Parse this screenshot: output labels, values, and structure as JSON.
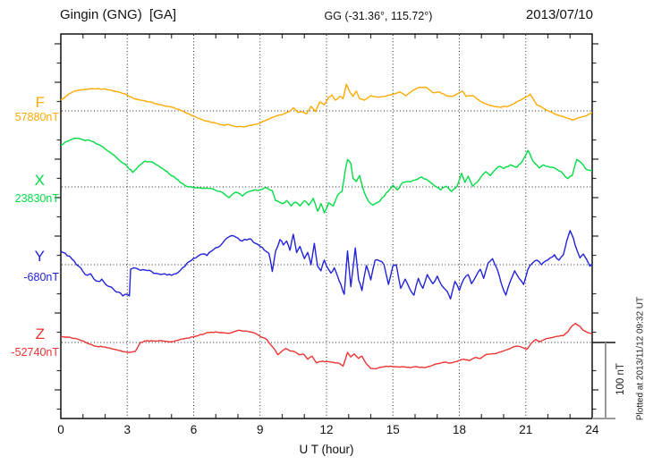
{
  "header": {
    "station": "Gingin (GNG)  [GA]",
    "coords": "GG (-31.36°, 115.72°)",
    "date": "2013/07/10"
  },
  "side": {
    "plotted_note": "Plotted at 2013/11/12 09:32 UT",
    "scale_label": "100 nT"
  },
  "chart_data": {
    "type": "line",
    "title": "Gingin (GNG) [GA] magnetogram 2013/07/10",
    "xlabel": "U T (hour)",
    "x_range": [
      0,
      24
    ],
    "x_ticks": [
      0,
      3,
      6,
      9,
      12,
      15,
      18,
      21,
      24
    ],
    "x_minor_tick_hours": 1,
    "grid": "dotted vertical lines every 3 hours; dotted horizontal line at each series baseline",
    "legend_position": "left margin, one colored label per stacked trace",
    "scale_bar_nT": 100,
    "y_unit": "nT",
    "series": [
      {
        "name": "F",
        "base_label": "57880nT",
        "base_nT": 57880,
        "color": "#FFAA00",
        "x": [
          0,
          0.3,
          0.6,
          1.0,
          1.3,
          1.6,
          2.0,
          2.3,
          2.6,
          3.0,
          3.3,
          3.6,
          4.0,
          4.5,
          5.0,
          5.5,
          6.0,
          6.5,
          7.0,
          7.4,
          7.6,
          7.8,
          8.2,
          8.6,
          9.0,
          9.4,
          9.7,
          10.0,
          10.3,
          10.5,
          10.7,
          10.9,
          11.1,
          11.3,
          11.5,
          11.7,
          11.9,
          12.1,
          12.25,
          12.4,
          12.6,
          12.75,
          12.9,
          13.05,
          13.2,
          13.35,
          13.5,
          13.7,
          14.0,
          14.3,
          14.6,
          15.0,
          15.3,
          15.6,
          15.9,
          16.2,
          16.5,
          16.8,
          17.1,
          17.4,
          17.7,
          18.0,
          18.15,
          18.3,
          18.6,
          19.0,
          19.4,
          19.8,
          20.2,
          20.6,
          21.0,
          21.2,
          21.5,
          22.0,
          22.4,
          22.8,
          23.1,
          23.4,
          23.7,
          24
        ],
        "dnT": [
          14,
          21,
          26,
          28,
          29,
          29,
          29,
          27,
          25,
          21,
          16,
          14,
          12,
          8,
          5,
          0,
          -7,
          -13,
          -16,
          -19,
          -18,
          -20,
          -21,
          -19,
          -16,
          -11,
          -7,
          -5,
          -1,
          4,
          -2,
          -1,
          -4,
          6,
          -1,
          12,
          8,
          18,
          21,
          14,
          19,
          16,
          35,
          25,
          19,
          26,
          16,
          14,
          20,
          18,
          19,
          22,
          25,
          20,
          27,
          31,
          31,
          24,
          25,
          20,
          19,
          24,
          26,
          19,
          20,
          12,
          7,
          5,
          6,
          12,
          18,
          22,
          8,
          0,
          -5,
          -9,
          -12,
          -9,
          -7,
          -2
        ]
      },
      {
        "name": "X",
        "base_label": "23830nT",
        "base_nT": 23830,
        "color": "#00DD44",
        "x": [
          0,
          0.3,
          0.7,
          1.0,
          1.4,
          1.8,
          2.2,
          2.6,
          3.0,
          3.25,
          3.5,
          3.8,
          4.1,
          4.4,
          4.8,
          5.2,
          5.6,
          6.0,
          6.4,
          6.8,
          7.2,
          7.6,
          7.9,
          8.2,
          8.5,
          9.0,
          9.3,
          9.55,
          9.7,
          10.0,
          10.2,
          10.4,
          10.6,
          10.8,
          11.0,
          11.2,
          11.4,
          11.6,
          11.75,
          11.9,
          12.1,
          12.3,
          12.5,
          12.7,
          12.85,
          12.95,
          13.1,
          13.2,
          13.35,
          13.5,
          13.7,
          13.9,
          14.1,
          14.4,
          14.7,
          15.0,
          15.2,
          15.45,
          15.7,
          16.0,
          16.3,
          16.6,
          16.9,
          17.15,
          17.4,
          17.65,
          17.9,
          18.1,
          18.25,
          18.4,
          18.6,
          18.8,
          19.0,
          19.2,
          19.4,
          19.6,
          19.8,
          20.0,
          20.3,
          20.6,
          20.85,
          21.1,
          21.35,
          21.6,
          21.8,
          22.0,
          22.3,
          22.6,
          22.9,
          23.1,
          23.3,
          23.5,
          23.7,
          24
        ],
        "dnT": [
          55,
          60,
          64,
          62,
          60,
          54,
          46,
          36,
          27,
          19,
          27,
          34,
          33,
          28,
          20,
          11,
          2,
          -1,
          -2,
          -2,
          -6,
          -14,
          -7,
          -12,
          -6,
          -4,
          -1,
          -5,
          -18,
          -22,
          -18,
          -25,
          -20,
          -25,
          -18,
          -24,
          -15,
          -32,
          -22,
          -34,
          -21,
          -25,
          -11,
          -6,
          22,
          36,
          31,
          11,
          7,
          15,
          -7,
          -19,
          -24,
          -19,
          -8,
          2,
          -4,
          6,
          7,
          9,
          13,
          8,
          1,
          -4,
          1,
          -6,
          1,
          18,
          6,
          14,
          1,
          6,
          14,
          20,
          15,
          22,
          27,
          24,
          29,
          26,
          34,
          48,
          33,
          25,
          29,
          27,
          25,
          20,
          11,
          15,
          36,
          32,
          24,
          21
        ]
      },
      {
        "name": "Y",
        "base_label": "-680nT",
        "base_nT": -680,
        "color": "#2323DC",
        "x": [
          0,
          0.2,
          0.4,
          0.6,
          0.8,
          1.0,
          1.2,
          1.35,
          1.5,
          1.7,
          1.85,
          2.0,
          2.2,
          2.4,
          2.6,
          2.8,
          3.0,
          3.1,
          3.15,
          3.3,
          3.5,
          3.8,
          4.1,
          4.4,
          4.7,
          5.0,
          5.2,
          5.5,
          5.8,
          6.1,
          6.4,
          6.6,
          6.9,
          7.2,
          7.5,
          7.8,
          8.0,
          8.2,
          8.5,
          8.8,
          9.0,
          9.2,
          9.4,
          9.55,
          9.7,
          9.9,
          10.05,
          10.2,
          10.35,
          10.5,
          10.65,
          10.8,
          11.0,
          11.15,
          11.3,
          11.45,
          11.6,
          11.75,
          11.9,
          12.05,
          12.2,
          12.35,
          12.5,
          12.65,
          12.8,
          12.95,
          13.1,
          13.3,
          13.45,
          13.6,
          13.8,
          14.0,
          14.2,
          14.4,
          14.6,
          14.8,
          15.0,
          15.15,
          15.35,
          15.55,
          15.75,
          15.95,
          16.15,
          16.35,
          16.55,
          16.8,
          17.0,
          17.2,
          17.45,
          17.6,
          17.8,
          18.0,
          18.2,
          18.4,
          18.55,
          18.75,
          18.95,
          19.1,
          19.3,
          19.5,
          19.7,
          19.9,
          20.1,
          20.3,
          20.5,
          20.7,
          20.9,
          21.1,
          21.3,
          21.5,
          21.7,
          21.9,
          22.1,
          22.3,
          22.5,
          22.7,
          22.85,
          23.0,
          23.15,
          23.3,
          23.45,
          23.6,
          23.75,
          23.9,
          24
        ],
        "dnT": [
          18,
          15,
          11,
          5,
          -2,
          -9,
          -14,
          -12,
          -19,
          -22,
          -19,
          -25,
          -29,
          -33,
          -36,
          -41,
          -39,
          -41,
          -6,
          -4,
          -6,
          -7,
          -9,
          -12,
          -12,
          -14,
          -12,
          -4,
          4,
          9,
          14,
          12,
          20,
          25,
          35,
          38,
          35,
          31,
          34,
          28,
          24,
          19,
          15,
          -9,
          18,
          33,
          26,
          31,
          19,
          40,
          16,
          24,
          8,
          16,
          0,
          28,
          -2,
          -8,
          6,
          -4,
          -11,
          -4,
          -15,
          -26,
          -39,
          18,
          -29,
          22,
          -20,
          -34,
          -1,
          -20,
          6,
          5,
          0,
          -26,
          -1,
          0,
          -31,
          -19,
          -31,
          -40,
          -18,
          -31,
          -13,
          -25,
          -15,
          -27,
          -35,
          -45,
          -22,
          -34,
          -19,
          -13,
          -25,
          -15,
          -6,
          -18,
          2,
          8,
          -5,
          -25,
          -40,
          -22,
          -8,
          -18,
          -26,
          -6,
          2,
          6,
          0,
          5,
          9,
          13,
          6,
          13,
          31,
          45,
          35,
          20,
          9,
          14,
          7,
          -2,
          1
        ]
      },
      {
        "name": "Z",
        "base_label": "-52740nT",
        "base_nT": -52740,
        "color": "#EE3333",
        "x": [
          0,
          0.4,
          0.8,
          1.2,
          1.6,
          2.0,
          2.4,
          2.8,
          3.1,
          3.35,
          3.6,
          3.8,
          4.2,
          4.6,
          5.0,
          5.4,
          5.8,
          6.2,
          6.6,
          7.0,
          7.3,
          7.6,
          7.9,
          8.1,
          8.4,
          8.7,
          9.0,
          9.3,
          9.6,
          9.8,
          10.0,
          10.15,
          10.35,
          10.55,
          10.75,
          10.95,
          11.15,
          11.35,
          11.55,
          11.75,
          12.0,
          12.3,
          12.55,
          12.75,
          12.95,
          13.1,
          13.25,
          13.45,
          13.6,
          13.8,
          14.0,
          14.3,
          14.6,
          14.9,
          15.2,
          15.5,
          15.8,
          16.1,
          16.4,
          16.7,
          17.0,
          17.3,
          17.6,
          17.9,
          18.2,
          18.45,
          18.7,
          18.95,
          19.2,
          19.45,
          19.7,
          20.0,
          20.3,
          20.55,
          20.8,
          21.05,
          21.25,
          21.45,
          21.65,
          21.85,
          22.1,
          22.4,
          22.7,
          22.9,
          23.1,
          23.25,
          23.45,
          23.6,
          23.8,
          24
        ],
        "dnT": [
          8,
          7,
          4,
          -1,
          -5,
          -6,
          -9,
          -12,
          -13,
          -12,
          0,
          2,
          2,
          2,
          1,
          4,
          6,
          9,
          13,
          14,
          13,
          12,
          15,
          16,
          15,
          13,
          8,
          4,
          -7,
          -16,
          -11,
          -8,
          -11,
          -12,
          -16,
          -15,
          -22,
          -18,
          -27,
          -25,
          -25,
          -26,
          -27,
          -31,
          -13,
          -19,
          -15,
          -21,
          -18,
          -28,
          -34,
          -34,
          -32,
          -31,
          -32,
          -32,
          -33,
          -32,
          -33,
          -31,
          -28,
          -26,
          -27,
          -25,
          -22,
          -24,
          -20,
          -21,
          -16,
          -15,
          -14,
          -11,
          -8,
          -5,
          -6,
          -9,
          -1,
          4,
          1,
          4,
          6,
          8,
          9,
          14,
          22,
          25,
          21,
          16,
          13,
          11
        ]
      }
    ]
  }
}
